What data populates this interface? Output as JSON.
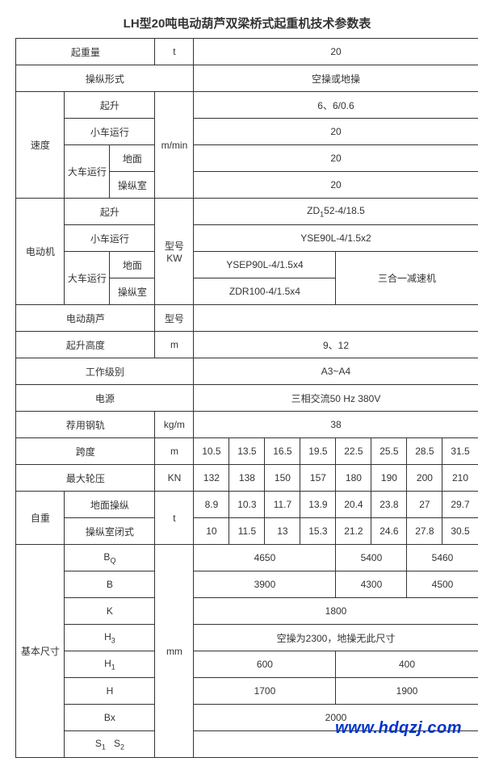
{
  "title": "LH型20吨电动葫芦双梁桥式起重机技术参数表",
  "colors": {
    "border": "#333333",
    "text": "#333333",
    "bg": "#ffffff",
    "watermark": "#0033cc"
  },
  "font": {
    "title_size": 15,
    "cell_size": 12,
    "sub_size": 9
  },
  "watermark": "www.hdqzj.com",
  "rows": {
    "lifting_cap": {
      "label": "起重量",
      "unit": "t",
      "value": "20"
    },
    "op_mode": {
      "label": "操纵形式",
      "value": "空操或地操"
    },
    "speed": {
      "group": "速度",
      "unit": "m/min",
      "lift": {
        "label": "起升",
        "value": "6、6/0.6"
      },
      "trolley": {
        "label": "小车运行",
        "value": "20"
      },
      "crane": {
        "label": "大车运行",
        "ground": {
          "label": "地面",
          "value": "20"
        },
        "cab": {
          "label": "操纵室",
          "value": "20"
        }
      }
    },
    "motor": {
      "group": "电动机",
      "unit_label": "型号\nKW",
      "lift": {
        "label": "起升",
        "value": "ZD₁52-4/18.5"
      },
      "trolley": {
        "label": "小车运行",
        "value": "YSE90L-4/1.5x2"
      },
      "crane": {
        "label": "大车运行",
        "ground": {
          "label": "地面",
          "value": "YSEP90L-4/1.5x4"
        },
        "cab": {
          "label": "操纵室",
          "value": "ZDR100-4/1.5x4"
        },
        "note": "三合一减速机"
      }
    },
    "hoist": {
      "label": "电动葫芦",
      "unit": "型号",
      "value": ""
    },
    "lift_height": {
      "label": "起升高度",
      "unit": "m",
      "value": "9、12"
    },
    "work_class": {
      "label": "工作级别",
      "value": "A3~A4"
    },
    "power": {
      "label": "电源",
      "value": "三相交流50 Hz 380V"
    },
    "rail": {
      "label": "荐用钢轨",
      "unit": "kg/m",
      "value": "38"
    },
    "span": {
      "label": "跨度",
      "unit": "m",
      "values": [
        "10.5",
        "13.5",
        "16.5",
        "19.5",
        "22.5",
        "25.5",
        "28.5",
        "31.5"
      ]
    },
    "wheel_load": {
      "label": "最大轮压",
      "unit": "KN",
      "values": [
        "132",
        "138",
        "150",
        "157",
        "180",
        "190",
        "200",
        "210"
      ]
    },
    "self_weight": {
      "group": "自重",
      "unit": "t",
      "ground": {
        "label": "地面操纵",
        "values": [
          "8.9",
          "10.3",
          "11.7",
          "13.9",
          "20.4",
          "23.8",
          "27",
          "29.7"
        ]
      },
      "cab": {
        "label": "操纵室闭式",
        "values": [
          "10",
          "11.5",
          "13",
          "15.3",
          "21.2",
          "24.6",
          "27.8",
          "30.5"
        ]
      }
    },
    "dims": {
      "group": "基本尺寸",
      "unit": "mm",
      "BQ": {
        "label_html": "B<span class='sub'>Q</span>",
        "vals": [
          "4650",
          "5400",
          "5460"
        ],
        "spans": [
          4,
          2,
          2
        ]
      },
      "B": {
        "label": "B",
        "vals": [
          "3900",
          "4300",
          "4500"
        ],
        "spans": [
          4,
          2,
          2
        ]
      },
      "K": {
        "label": "K",
        "value": "1800"
      },
      "H3": {
        "label_html": "H<span class='sub'>3</span>",
        "value": "空操为2300，地操无此尺寸"
      },
      "H1": {
        "label_html": "H<span class='sub'>1</span>",
        "vals": [
          "600",
          "400"
        ],
        "spans": [
          4,
          4
        ]
      },
      "H": {
        "label": "H",
        "vals": [
          "1700",
          "1900"
        ],
        "spans": [
          4,
          4
        ]
      },
      "Bx": {
        "label": "Bx",
        "value": "2000"
      },
      "S": {
        "label_html": "S<span class='sub'>1</span>&nbsp;&nbsp;S<span class='sub'>2</span>",
        "value": ""
      }
    }
  }
}
